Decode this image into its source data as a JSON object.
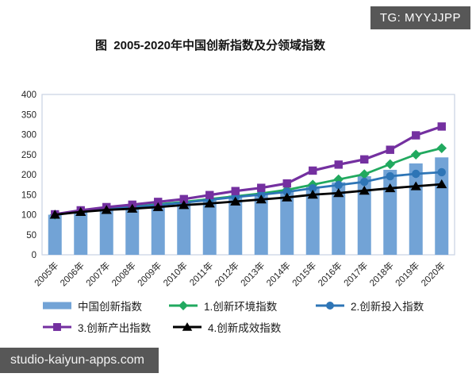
{
  "watermarks": {
    "tg_badge": "TG: MYYJJPP",
    "site": "studio-kaiyun-apps.com"
  },
  "chart_data": {
    "type": "bar+line",
    "title": "图  2005-2020年中国创新指数及分领域指数",
    "xlabel": "",
    "ylabel": "",
    "ylim": [
      0,
      400
    ],
    "ytick_step": 50,
    "grid": false,
    "legend_position": "bottom",
    "categories": [
      "2005年",
      "2006年",
      "2007年",
      "2008年",
      "2009年",
      "2010年",
      "2011年",
      "2012年",
      "2013年",
      "2014年",
      "2015年",
      "2016年",
      "2017年",
      "2018年",
      "2019年",
      "2020年"
    ],
    "series": [
      {
        "name": "中国创新指数",
        "type": "bar",
        "marker": "none",
        "color": "#72A3D6",
        "values": [
          100,
          109,
          116,
          121,
          126,
          132,
          140,
          148,
          153,
          158,
          171,
          181,
          196,
          212,
          228,
          243
        ]
      },
      {
        "name": "1.创新环境指数",
        "type": "line",
        "marker": "diamond",
        "color": "#21A95F",
        "values": [
          100,
          109,
          115,
          120,
          126,
          132,
          139,
          146,
          153,
          162,
          175,
          188,
          201,
          226,
          250,
          266
        ]
      },
      {
        "name": "2.创新投入指数",
        "type": "line",
        "marker": "circle",
        "color": "#2E75B6",
        "values": [
          100,
          108,
          114,
          119,
          124,
          130,
          137,
          144,
          150,
          157,
          166,
          174,
          182,
          196,
          202,
          206
        ]
      },
      {
        "name": "3.创新产出指数",
        "type": "line",
        "marker": "square",
        "color": "#7430A0",
        "values": [
          101,
          111,
          119,
          125,
          132,
          139,
          149,
          159,
          167,
          178,
          210,
          225,
          238,
          262,
          298,
          320
        ]
      },
      {
        "name": "4.创新成效指数",
        "type": "line",
        "marker": "triangle",
        "color": "#000000",
        "values": [
          100,
          107,
          112,
          115,
          119,
          124,
          128,
          133,
          138,
          143,
          150,
          154,
          160,
          166,
          171,
          176
        ]
      }
    ]
  }
}
